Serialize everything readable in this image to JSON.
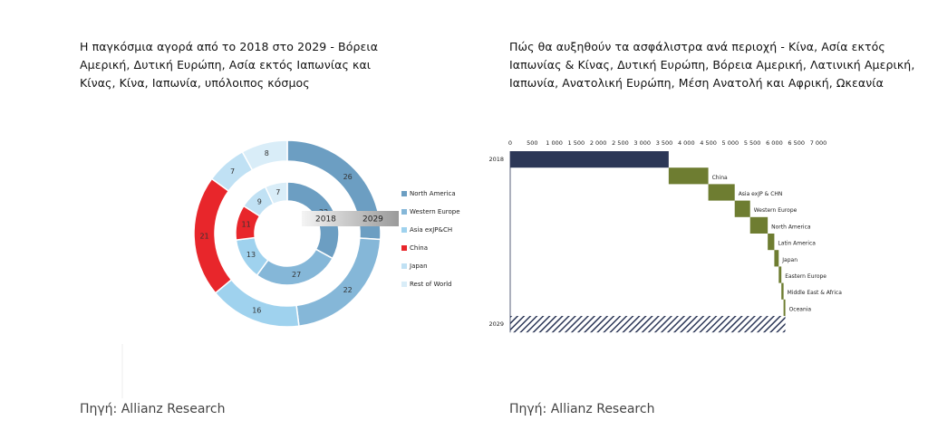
{
  "chart_data": [
    {
      "type": "donut",
      "title": "Η παγκόσμια αγορά από το 2018 στο 2029 - Βόρεια Αμερική, Δυτική Ευρώπη, Ασία εκτός Ιαπωνίας και Κίνας, Κίνα, Ιαπωνία, υπόλοιπος κόσμος",
      "categories": [
        "North America",
        "Western Europe",
        "Asia exJP&CH",
        "China",
        "Japan",
        "Rest of World"
      ],
      "colors": [
        "#6c9ec2",
        "#85b7d8",
        "#9fd2ee",
        "#e8262b",
        "#c0e1f4",
        "#d9edf8"
      ],
      "series": [
        {
          "name": "2018",
          "values": [
            33,
            27,
            13,
            11,
            9,
            7
          ]
        },
        {
          "name": "2029",
          "values": [
            26,
            22,
            16,
            21,
            7,
            8
          ]
        }
      ],
      "source": "Πηγή: Allianz Research"
    },
    {
      "type": "waterfall",
      "title": "Πώς θα αυξηθούν τα ασφάλιστρα ανά περιοχή - Κίνα, Ασία εκτός Ιαπωνίας & Κίνας, Δυτική Ευρώπη, Βόρεια Αμερική, Λατινική Αμερική, Ιαπωνία, Ανατολική Ευρώπη, Μέση Ανατολή και Αφρική, Ωκεανία",
      "categories": [
        "2018",
        "China",
        "Asia exJP & CHN",
        "Western Europe",
        "North America",
        "Latin America",
        "Japan",
        "Eastern Europe",
        "Middle East & Africa",
        "Oceania",
        "2029"
      ],
      "values": [
        3600,
        900,
        600,
        350,
        400,
        150,
        100,
        60,
        50,
        40,
        6250
      ],
      "xlim": [
        0,
        7000
      ],
      "xticks": [
        0,
        500,
        {
          "value": 1000,
          "label": "1 000"
        },
        {
          "value": 1500,
          "label": "1 500"
        },
        {
          "value": 2000,
          "label": "2 000"
        },
        {
          "value": 2500,
          "label": "2 500"
        },
        {
          "value": 3000,
          "label": "3 000"
        },
        {
          "value": 3500,
          "label": "3 500"
        },
        {
          "value": 4000,
          "label": "4 000"
        },
        {
          "value": 4500,
          "label": "4 500"
        },
        {
          "value": 5000,
          "label": "5 000"
        },
        {
          "value": 5500,
          "label": "5 500"
        },
        {
          "value": 6000,
          "label": "6 000"
        },
        {
          "value": 6500,
          "label": "6 500"
        },
        {
          "value": 7000,
          "label": "7 000"
        }
      ],
      "total_color": "#2c3757",
      "increase_color": "#6e7d31",
      "source": "Πηγή: Allianz Research"
    }
  ]
}
